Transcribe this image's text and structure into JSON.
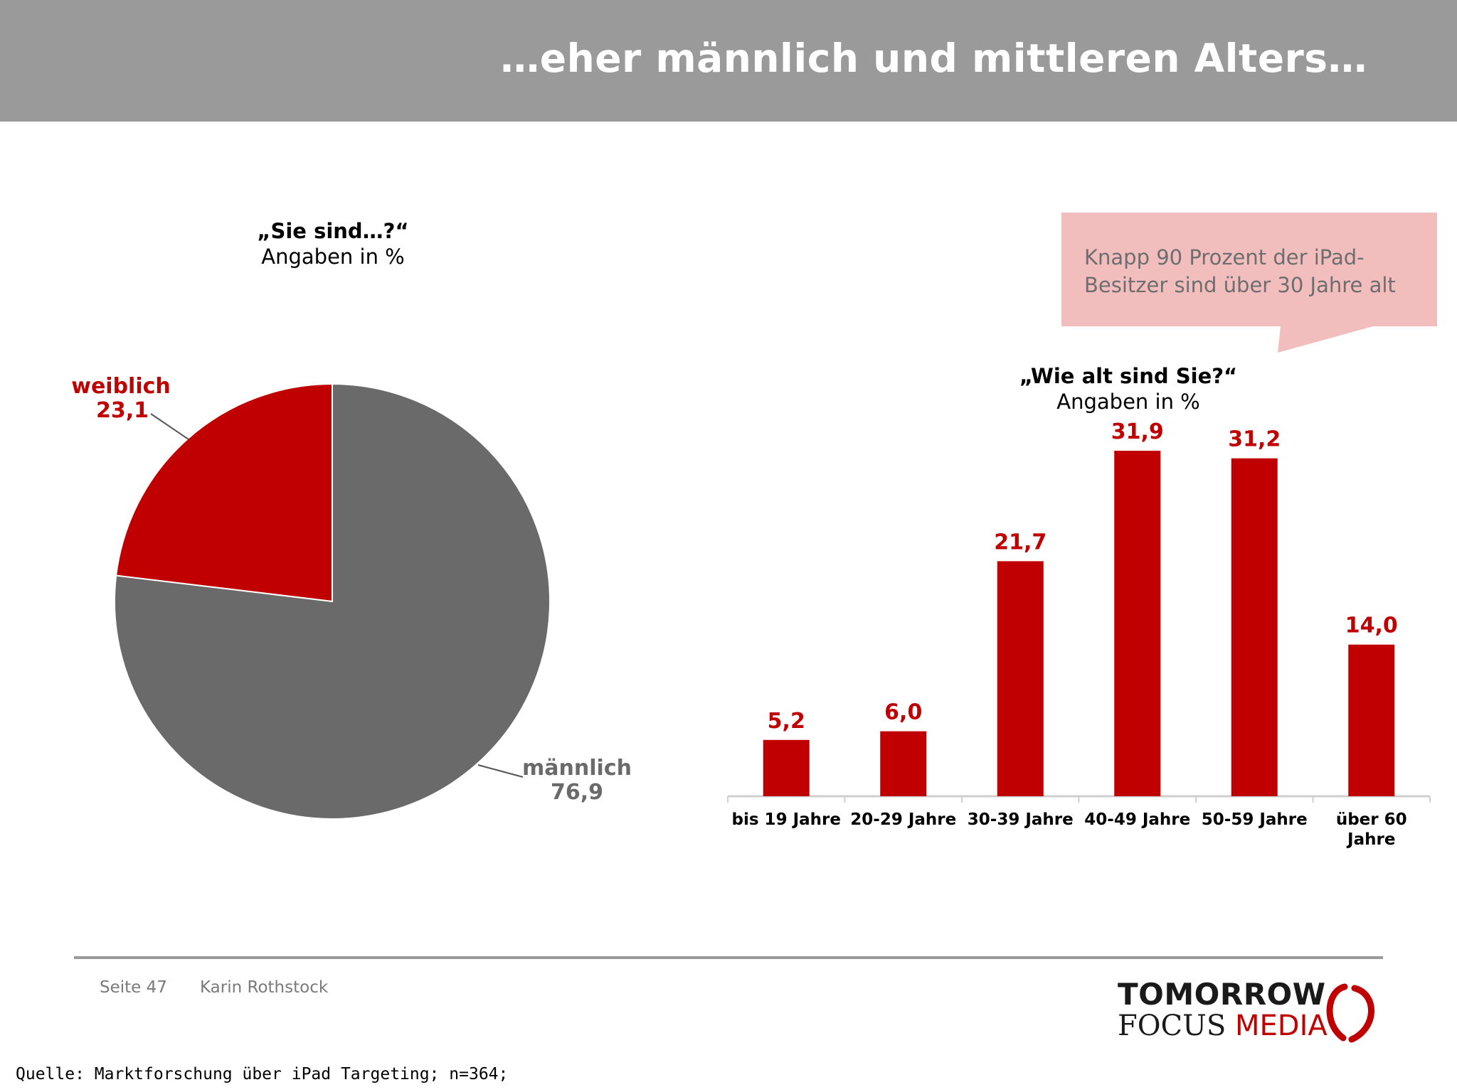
{
  "header": {
    "title": "…eher männlich und mittleren Alters…"
  },
  "callout": {
    "text": "Knapp 90 Prozent der iPad-Besitzer sind über 30 Jahre alt"
  },
  "colors": {
    "red": "#c00000",
    "grey": "#6b6a6b",
    "header": "#9a9a9a",
    "callout": "#f2bdbd"
  },
  "chart_data": [
    {
      "type": "pie",
      "question": "„Sie sind…?“",
      "subtitle": "Angaben in %",
      "slices": [
        {
          "name": "weiblich",
          "label": "23,1",
          "value": 23.1,
          "color": "#c00000"
        },
        {
          "name": "männlich",
          "label": "76,9",
          "value": 76.9,
          "color": "#6b6a6b"
        }
      ]
    },
    {
      "type": "bar",
      "question": "„Wie alt sind Sie?“",
      "subtitle": "Angaben in %",
      "categories": [
        "bis 19 Jahre",
        "20-29 Jahre",
        "30-39 Jahre",
        "40-49 Jahre",
        "50-59 Jahre",
        "über 60 Jahre"
      ],
      "values": [
        5.2,
        6.0,
        21.7,
        31.9,
        31.2,
        14.0
      ],
      "value_labels": [
        "5,2",
        "6,0",
        "21,7",
        "31,9",
        "31,2",
        "14,0"
      ],
      "ylim": [
        0,
        35
      ],
      "color": "#c00000"
    }
  ],
  "footer": {
    "page": "Seite 47",
    "author": "Karin Rothstock",
    "source": "Quelle: Marktforschung über iPad Targeting; n=364;"
  },
  "logo": {
    "line1": "TOMORROW",
    "line2a": "FOCUS",
    "line2b": "MEDIA"
  }
}
